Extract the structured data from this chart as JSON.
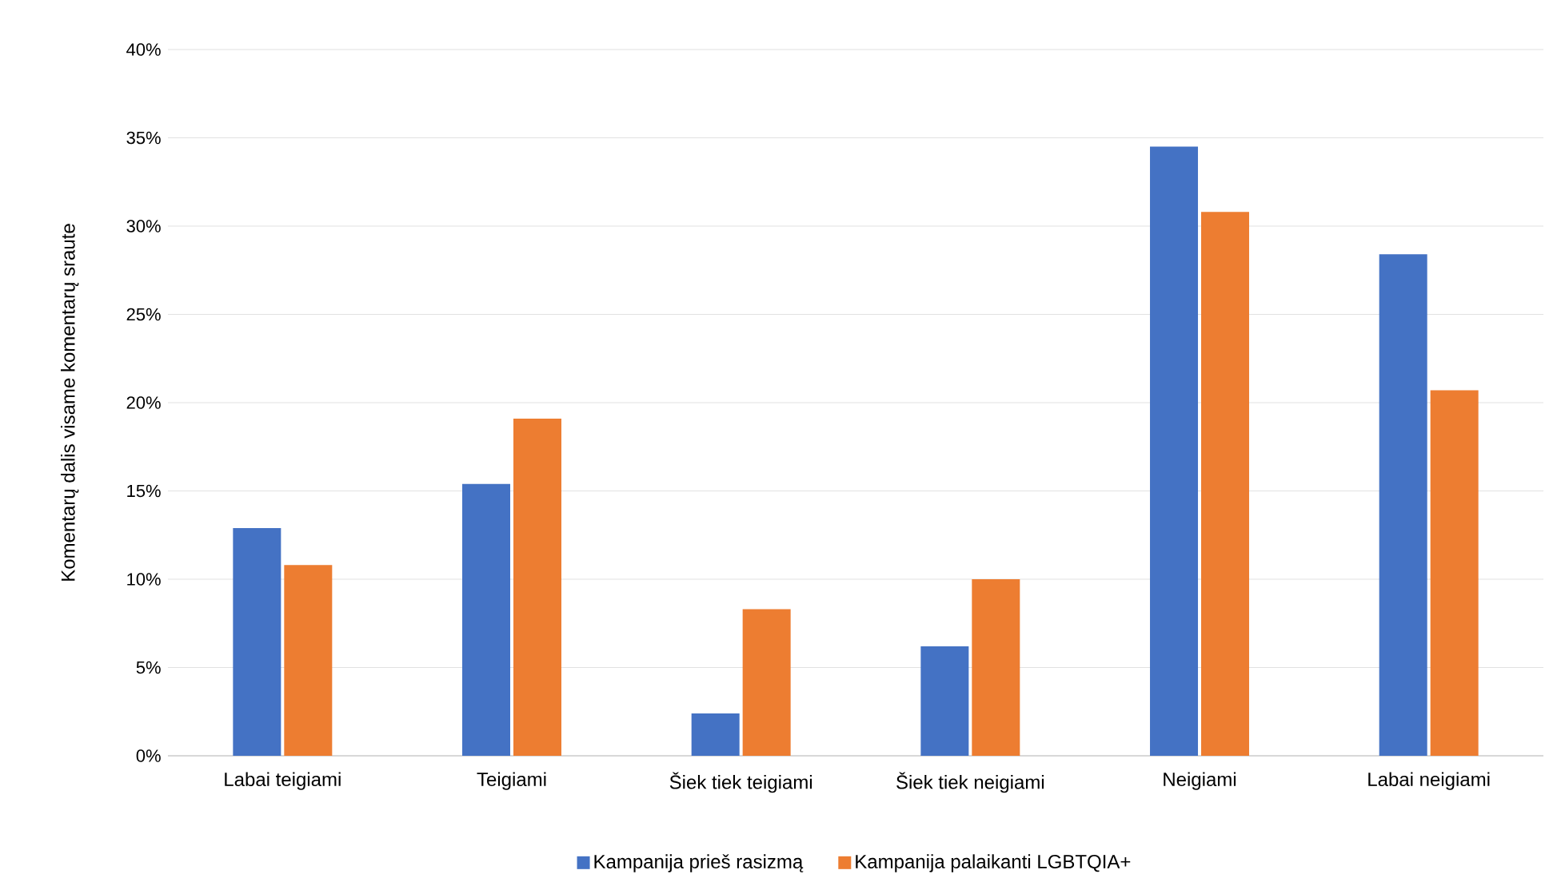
{
  "chart_data": {
    "type": "bar",
    "ylabel": "Komentarų dalis visame komentarų sraute",
    "categories": [
      "Labai teigiami",
      "Teigiami",
      "Šiek tiek teigiami",
      "Šiek tiek neigiami",
      "Neigiami",
      "Labai neigiami"
    ],
    "series": [
      {
        "name": "Kampanija prieš rasizmą",
        "color": "#4472c4",
        "values": [
          12.9,
          15.4,
          2.4,
          6.2,
          34.5,
          28.4
        ]
      },
      {
        "name": "Kampanija palaikanti LGBTQIA+",
        "color": "#ed7d31",
        "values": [
          10.8,
          19.1,
          8.3,
          10.0,
          30.8,
          20.7
        ]
      }
    ],
    "ylim": [
      0,
      40
    ],
    "yticks": [
      {
        "value": 0,
        "label": "0%"
      },
      {
        "value": 5,
        "label": "5%"
      },
      {
        "value": 10,
        "label": "10%"
      },
      {
        "value": 15,
        "label": "15%"
      },
      {
        "value": 20,
        "label": "20%"
      },
      {
        "value": 25,
        "label": "25%"
      },
      {
        "value": 30,
        "label": "30%"
      },
      {
        "value": 35,
        "label": "35%"
      },
      {
        "value": 40,
        "label": "40%"
      }
    ],
    "grid": "y",
    "legend": "bottom"
  }
}
